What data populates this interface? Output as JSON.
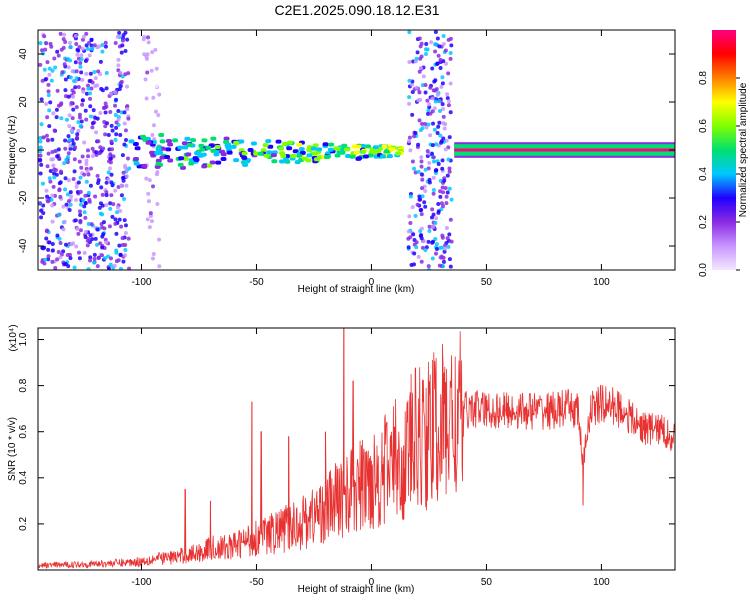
{
  "title": "C2E1.2025.090.18.12.E31",
  "chart_data": [
    {
      "type": "heatmap",
      "xlabel": "Height of straight line (km)",
      "ylabel": "Frequency (Hz)",
      "xlim": [
        -145,
        132
      ],
      "ylim": [
        -50,
        50
      ],
      "xticks": [
        -100,
        -50,
        0,
        50,
        100
      ],
      "xtick_labels": [
        "-100",
        "-50",
        "0",
        "50",
        "100"
      ],
      "yticks": [
        -40,
        -20,
        0,
        20,
        40
      ],
      "ytick_labels": [
        "-40",
        "-20",
        "0",
        "20",
        "40"
      ],
      "colorbar": {
        "label": "Normalized spectral amplitude",
        "ticks": [
          0.0,
          0.2,
          0.4,
          0.6,
          0.8
        ],
        "tick_labels": [
          "0.0",
          "0.2",
          "0.4",
          "0.6",
          "0.8"
        ],
        "colors": [
          "#f4e6ff",
          "#c896ff",
          "#8a2be2",
          "#2000ff",
          "#00c8ff",
          "#00e070",
          "#80ff00",
          "#ffff00",
          "#ff8000",
          "#ff0000",
          "#ff0080"
        ]
      },
      "regions": [
        {
          "x": [
            -145,
            -106
          ],
          "f": [
            -50,
            50
          ],
          "kind": "noise",
          "level": 0.25
        },
        {
          "x": [
            -100,
            -93
          ],
          "f": [
            -50,
            50
          ],
          "kind": "sparse noise",
          "level": 0.1
        },
        {
          "x": [
            -106,
            12
          ],
          "f": [
            -8,
            8
          ],
          "kind": "band",
          "level": 0.45
        },
        {
          "x": [
            15,
            34
          ],
          "f": [
            -50,
            50
          ],
          "kind": "noise",
          "level": 0.25
        },
        {
          "x": [
            36,
            132
          ],
          "f": [
            -2,
            2
          ],
          "kind": "narrow line",
          "level": 0.95
        }
      ],
      "grid": false,
      "grid_lines": "none"
    },
    {
      "type": "line",
      "xlabel": "Height of straight line (km)",
      "ylabel": "SNR (10 * v/v)",
      "y_multiplier": "(x10⁴)",
      "xlim": [
        -145,
        132
      ],
      "ylim": [
        0,
        1.05
      ],
      "xticks": [
        -100,
        -50,
        0,
        50,
        100
      ],
      "xtick_labels": [
        "-100",
        "-50",
        "0",
        "50",
        "100"
      ],
      "yticks": [
        0.2,
        0.4,
        0.6,
        0.8,
        1.0
      ],
      "ytick_labels": [
        "0.2",
        "0.4",
        "0.6",
        "0.8",
        "1.0"
      ],
      "color": "#e83232",
      "x": [
        -145,
        -130,
        -115,
        -105,
        -100,
        -95,
        -90,
        -85,
        -80,
        -75,
        -70,
        -65,
        -60,
        -55,
        -50,
        -45,
        -40,
        -35,
        -30,
        -25,
        -20,
        -15,
        -12,
        -10,
        -8,
        -5,
        0,
        5,
        10,
        15,
        20,
        25,
        30,
        35,
        40,
        45,
        50,
        60,
        70,
        80,
        85,
        90,
        92,
        95,
        100,
        105,
        110,
        115,
        120,
        125,
        132
      ],
      "baseline": [
        0.02,
        0.025,
        0.03,
        0.035,
        0.04,
        0.05,
        0.055,
        0.06,
        0.07,
        0.08,
        0.1,
        0.1,
        0.11,
        0.13,
        0.15,
        0.16,
        0.18,
        0.2,
        0.22,
        0.25,
        0.28,
        0.32,
        0.34,
        0.35,
        0.36,
        0.38,
        0.42,
        0.45,
        0.5,
        0.55,
        0.6,
        0.63,
        0.66,
        0.68,
        0.7,
        0.71,
        0.7,
        0.7,
        0.7,
        0.7,
        0.71,
        0.7,
        0.45,
        0.7,
        0.73,
        0.72,
        0.7,
        0.64,
        0.62,
        0.62,
        0.58
      ],
      "peaks": [
        {
          "x": -81,
          "y": 0.35
        },
        {
          "x": -70,
          "y": 0.3
        },
        {
          "x": -52,
          "y": 0.73
        },
        {
          "x": -48,
          "y": 0.6
        },
        {
          "x": -36,
          "y": 0.58
        },
        {
          "x": -20,
          "y": 0.6
        },
        {
          "x": -12,
          "y": 1.05
        },
        {
          "x": -8,
          "y": 0.82
        },
        {
          "x": 10,
          "y": 0.62
        },
        {
          "x": 14,
          "y": 0.22
        },
        {
          "x": 92,
          "y": 0.28
        }
      ],
      "grid": false
    }
  ]
}
